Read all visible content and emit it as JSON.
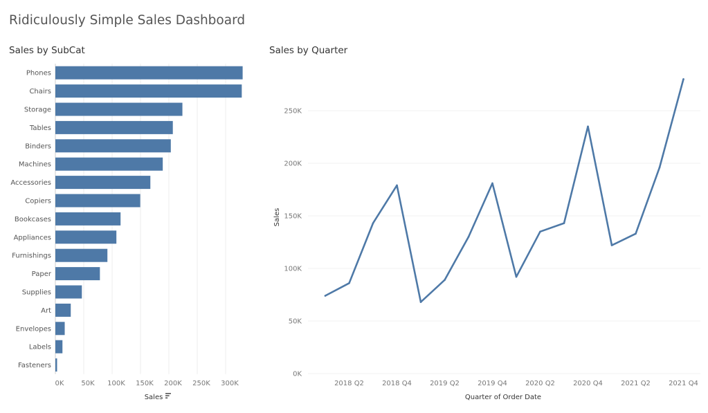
{
  "dashboard": {
    "title": "Ridiculously Simple Sales Dashboard"
  },
  "chart_data": [
    {
      "type": "bar",
      "orientation": "horizontal",
      "title": "Sales by SubCat",
      "categories": [
        "Phones",
        "Chairs",
        "Storage",
        "Tables",
        "Binders",
        "Machines",
        "Accessories",
        "Copiers",
        "Bookcases",
        "Appliances",
        "Furnishings",
        "Paper",
        "Supplies",
        "Art",
        "Envelopes",
        "Labels",
        "Fasteners"
      ],
      "values": [
        330007,
        328449,
        223844,
        206966,
        203413,
        189239,
        167380,
        149528,
        114880,
        107532,
        91705,
        78479,
        46674,
        27119,
        16476,
        12486,
        3024
      ],
      "xlabel": "Sales",
      "ylabel": "",
      "xlim": [
        0,
        345000
      ],
      "xticks": [
        0,
        50000,
        100000,
        150000,
        200000,
        250000,
        300000
      ],
      "xtick_labels": [
        "0K",
        "50K",
        "100K",
        "150K",
        "200K",
        "250K",
        "300K"
      ],
      "sort_icon": "sort-descending-icon",
      "color": "#4e79a7",
      "grid": true
    },
    {
      "type": "line",
      "title": "Sales by Quarter",
      "x": [
        "2018 Q1",
        "2018 Q2",
        "2018 Q3",
        "2018 Q4",
        "2019 Q1",
        "2019 Q2",
        "2019 Q3",
        "2019 Q4",
        "2020 Q1",
        "2020 Q2",
        "2020 Q3",
        "2020 Q4",
        "2021 Q1",
        "2021 Q2",
        "2021 Q3",
        "2021 Q4"
      ],
      "values": [
        74000,
        86000,
        143000,
        179000,
        68000,
        89000,
        130000,
        181000,
        92000,
        135000,
        143000,
        235000,
        122000,
        133000,
        196000,
        280000
      ],
      "xlabel": "Quarter of Order Date",
      "ylabel": "Sales",
      "ylim": [
        0,
        290000
      ],
      "yticks": [
        0,
        50000,
        100000,
        150000,
        200000,
        250000
      ],
      "ytick_labels": [
        "0K",
        "50K",
        "100K",
        "150K",
        "200K",
        "250K"
      ],
      "xtick_labels": [
        "2018 Q2",
        "2018 Q4",
        "2019 Q2",
        "2019 Q4",
        "2020 Q2",
        "2020 Q4",
        "2021 Q2",
        "2021 Q4"
      ],
      "xtick_indices": [
        1,
        3,
        5,
        7,
        9,
        11,
        13,
        15
      ],
      "color": "#4e79a7",
      "grid": true
    }
  ]
}
